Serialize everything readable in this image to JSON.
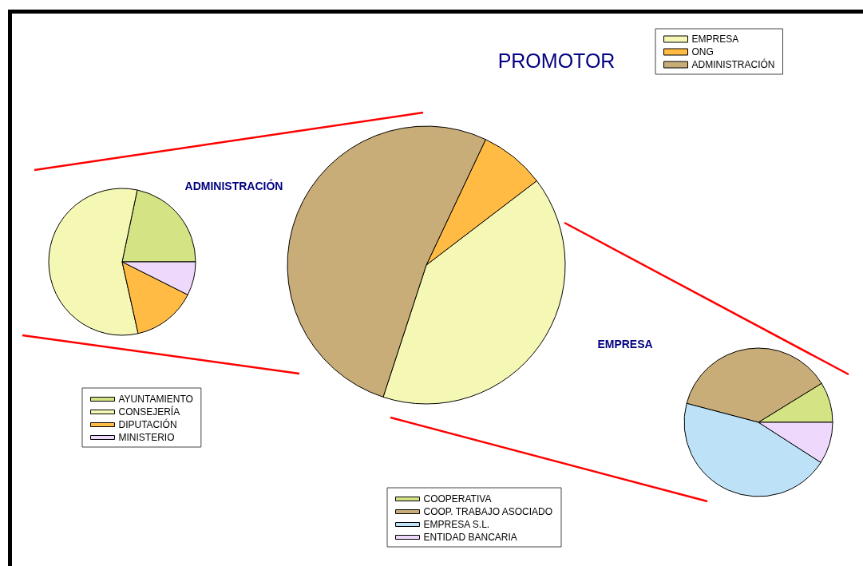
{
  "chart_data": [
    {
      "type": "pie",
      "title": "PROMOTOR",
      "categories": [
        "EMPRESA",
        "ONG",
        "ADMINISTRACIÓN"
      ],
      "values": [
        40.4,
        7.6,
        52.0
      ],
      "colors": [
        "#f5f7b4",
        "#ffbb44",
        "#c8ad78"
      ],
      "legend": "top right"
    },
    {
      "type": "pie",
      "title": "ADMINISTRACIÓN",
      "categories": [
        "AYUNTAMIENTO",
        "CONSEJERÍA",
        "DIPUTACIÓN",
        "MINISTERIO"
      ],
      "values": [
        21.7,
        56.8,
        14.1,
        7.4
      ],
      "colors": [
        "#d4e485",
        "#f5f7b4",
        "#ffbb44",
        "#eed8fb"
      ],
      "legend": "bottom"
    },
    {
      "type": "pie",
      "title": "EMPRESA",
      "categories": [
        "COOPERATIVA",
        "COOP. TRABAJO ASOCIADO",
        "EMPRESA S.L.",
        "ENTIDAD BANCARIA"
      ],
      "values": [
        8.8,
        37.1,
        45.0,
        9.1
      ],
      "colors": [
        "#d4e485",
        "#c8ad78",
        "#bde2f8",
        "#eed8fb"
      ],
      "legend": "bottom left"
    }
  ]
}
